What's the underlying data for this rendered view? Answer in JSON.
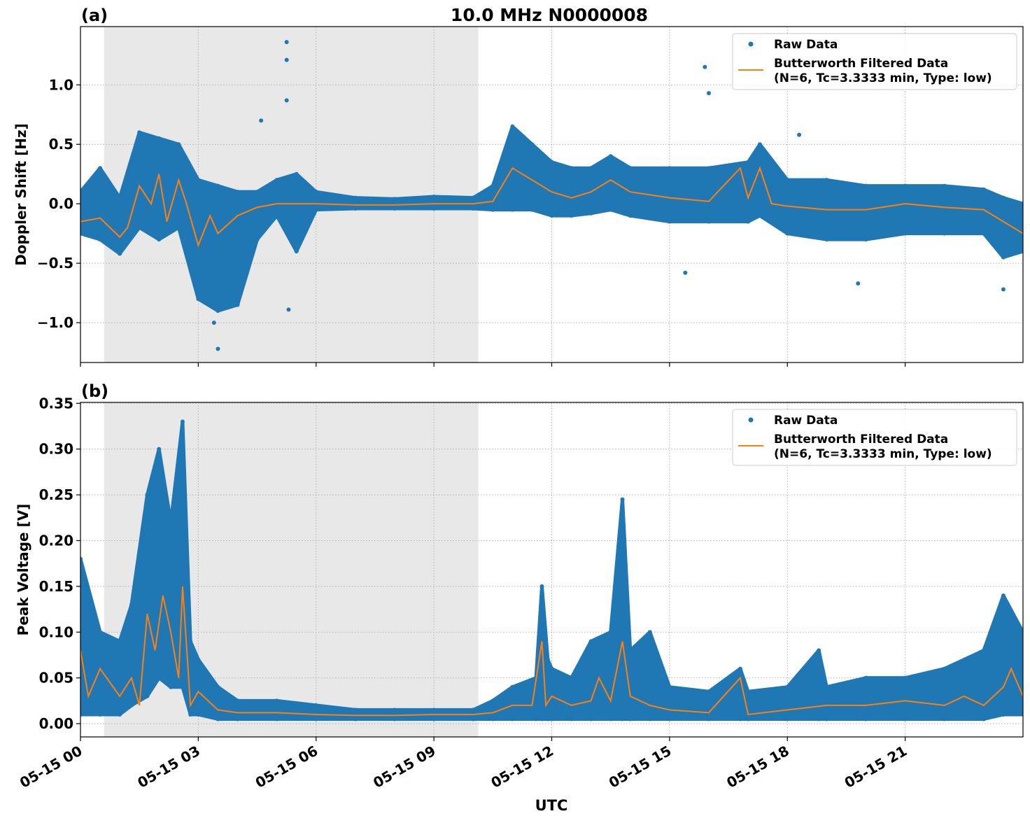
{
  "chart_data": [
    {
      "type": "scatter",
      "panel_label": "(a)",
      "title": "10.0 MHz N0000008",
      "xlabel": "",
      "ylabel": "Doppler Shift [Hz]",
      "xlim_hours": [
        0,
        24
      ],
      "ylim": [
        -1.335,
        1.49
      ],
      "yticks": [
        1.0,
        0.5,
        0.0,
        -0.5,
        -1.0
      ],
      "ytick_labels": [
        "1.0",
        "0.5",
        "0.0",
        "−0.5",
        "−1.0"
      ],
      "grid": true,
      "legend_placement": "top-right",
      "shaded_interval_hours": [
        0.6,
        10.13
      ],
      "shade_color": "#e8e8e8",
      "series": [
        {
          "name": "Raw Data",
          "kind": "scatter-band",
          "color": "#1f77b4",
          "x": [
            0,
            0.5,
            1,
            1.5,
            2,
            2.5,
            3,
            3.5,
            4,
            4.5,
            5,
            5.5,
            6,
            7,
            8,
            9,
            10,
            10.5,
            11,
            11.5,
            12,
            12.5,
            13,
            13.5,
            14,
            15,
            16,
            17,
            17.3,
            18,
            19,
            20,
            21,
            22,
            23,
            23.5,
            24
          ],
          "low": [
            -0.25,
            -0.3,
            -0.42,
            -0.2,
            -0.3,
            -0.2,
            -0.8,
            -0.9,
            -0.85,
            -0.3,
            -0.1,
            -0.4,
            -0.05,
            -0.04,
            -0.04,
            -0.04,
            -0.04,
            -0.05,
            -0.05,
            -0.05,
            -0.1,
            -0.1,
            -0.08,
            -0.05,
            -0.1,
            -0.15,
            -0.15,
            -0.15,
            -0.1,
            -0.25,
            -0.3,
            -0.3,
            -0.25,
            -0.25,
            -0.25,
            -0.45,
            -0.4
          ],
          "high": [
            0.1,
            0.3,
            0.05,
            0.6,
            0.55,
            0.5,
            0.2,
            0.15,
            0.1,
            0.1,
            0.2,
            0.25,
            0.1,
            0.05,
            0.04,
            0.06,
            0.05,
            0.15,
            0.65,
            0.5,
            0.35,
            0.3,
            0.3,
            0.4,
            0.3,
            0.3,
            0.3,
            0.35,
            0.5,
            0.2,
            0.2,
            0.15,
            0.15,
            0.15,
            0.12,
            0.05,
            0.0
          ],
          "outliers": [
            [
              5.25,
              1.36
            ],
            [
              5.25,
              1.21
            ],
            [
              5.25,
              0.87
            ],
            [
              4.6,
              0.7
            ],
            [
              3.5,
              -1.22
            ],
            [
              3.4,
              -1.0
            ],
            [
              5.3,
              -0.89
            ],
            [
              15.9,
              1.15
            ],
            [
              16.0,
              0.93
            ],
            [
              18.3,
              0.58
            ],
            [
              15.4,
              -0.58
            ],
            [
              19.8,
              -0.67
            ],
            [
              23.5,
              -0.72
            ]
          ]
        },
        {
          "name": "Butterworth Filtered Data\n(N=6, Tc=3.3333 min, Type: low)",
          "kind": "line",
          "color": "#ff7f0e",
          "x": [
            0,
            0.5,
            1,
            1.2,
            1.5,
            1.8,
            2,
            2.2,
            2.5,
            2.7,
            3,
            3.3,
            3.5,
            4,
            4.5,
            5,
            5.5,
            6,
            7,
            8,
            9,
            10,
            10.5,
            11,
            11.5,
            12,
            12.5,
            13,
            13.5,
            14,
            15,
            16,
            16.8,
            17,
            17.3,
            17.6,
            18,
            19,
            20,
            21,
            22,
            23,
            23.5,
            24
          ],
          "y": [
            -0.15,
            -0.12,
            -0.28,
            -0.2,
            0.15,
            0.0,
            0.25,
            -0.15,
            0.2,
            0.0,
            -0.35,
            -0.1,
            -0.25,
            -0.1,
            -0.03,
            0.0,
            0.0,
            0.0,
            -0.01,
            -0.01,
            0.0,
            0.0,
            0.02,
            0.3,
            0.2,
            0.1,
            0.05,
            0.1,
            0.2,
            0.1,
            0.05,
            0.02,
            0.3,
            0.05,
            0.3,
            0.0,
            -0.02,
            -0.05,
            -0.05,
            0.0,
            -0.03,
            -0.05,
            -0.15,
            -0.25
          ]
        }
      ],
      "legend": [
        "Raw Data",
        "Butterworth Filtered Data",
        "(N=6, Tc=3.3333 min, Type: low)"
      ]
    },
    {
      "type": "scatter",
      "panel_label": "(b)",
      "title": "",
      "xlabel": "UTC",
      "ylabel": "Peak Voltage [V]",
      "xlim_hours": [
        0,
        24
      ],
      "ylim": [
        -0.0145,
        0.351
      ],
      "yticks": [
        0.0,
        0.05,
        0.1,
        0.15,
        0.2,
        0.25,
        0.3,
        0.35
      ],
      "ytick_labels": [
        "0.00",
        "0.05",
        "0.10",
        "0.15",
        "0.20",
        "0.25",
        "0.30",
        "0.35"
      ],
      "xticks_hours": [
        0,
        3,
        6,
        9,
        12,
        15,
        18,
        21
      ],
      "xtick_labels": [
        "05-15 00",
        "05-15 03",
        "05-15 06",
        "05-15 09",
        "05-15 12",
        "05-15 15",
        "05-15 18",
        "05-15 21"
      ],
      "grid": true,
      "legend_placement": "top-right",
      "shaded_interval_hours": [
        0.6,
        10.13
      ],
      "shade_color": "#e8e8e8",
      "series": [
        {
          "name": "Raw Data",
          "kind": "scatter-band",
          "color": "#1f77b4",
          "x": [
            0,
            0.5,
            1,
            1.3,
            1.7,
            2,
            2.3,
            2.6,
            2.8,
            3,
            3.5,
            4,
            5,
            6,
            7,
            8,
            9,
            10,
            10.5,
            11,
            11.6,
            11.75,
            11.9,
            12,
            12.5,
            13,
            13.5,
            13.8,
            14,
            14.5,
            15,
            16,
            16.8,
            17,
            18,
            18.8,
            19,
            20,
            21,
            22,
            23,
            23.5,
            24
          ],
          "low": [
            0.01,
            0.01,
            0.01,
            0.02,
            0.03,
            0.05,
            0.04,
            0.04,
            0.01,
            0.01,
            0.005,
            0.005,
            0.005,
            0.005,
            0.005,
            0.005,
            0.005,
            0.005,
            0.005,
            0.005,
            0.005,
            0.005,
            0.005,
            0.005,
            0.005,
            0.005,
            0.005,
            0.005,
            0.005,
            0.005,
            0.005,
            0.005,
            0.005,
            0.005,
            0.005,
            0.005,
            0.005,
            0.005,
            0.005,
            0.005,
            0.005,
            0.01,
            0.01
          ],
          "high": [
            0.18,
            0.1,
            0.09,
            0.13,
            0.25,
            0.3,
            0.22,
            0.33,
            0.09,
            0.07,
            0.04,
            0.025,
            0.025,
            0.02,
            0.015,
            0.015,
            0.015,
            0.015,
            0.025,
            0.04,
            0.05,
            0.15,
            0.07,
            0.06,
            0.05,
            0.09,
            0.1,
            0.245,
            0.08,
            0.1,
            0.04,
            0.035,
            0.06,
            0.035,
            0.04,
            0.08,
            0.04,
            0.05,
            0.05,
            0.06,
            0.08,
            0.14,
            0.1
          ]
        },
        {
          "name": "Butterworth Filtered Data\n(N=6, Tc=3.3333 min, Type: low)",
          "kind": "line",
          "color": "#ff7f0e",
          "x": [
            0,
            0.2,
            0.5,
            1,
            1.3,
            1.5,
            1.7,
            1.9,
            2.1,
            2.3,
            2.5,
            2.6,
            2.8,
            3,
            3.5,
            4,
            5,
            6,
            7,
            8,
            9,
            10,
            10.5,
            11,
            11.5,
            11.75,
            11.85,
            12,
            12.5,
            13,
            13.2,
            13.5,
            13.8,
            14,
            14.5,
            15,
            16,
            16.8,
            17,
            18,
            19,
            20,
            21,
            22,
            22.5,
            23,
            23.5,
            23.7,
            24
          ],
          "y": [
            0.08,
            0.03,
            0.06,
            0.03,
            0.05,
            0.02,
            0.12,
            0.08,
            0.14,
            0.1,
            0.05,
            0.15,
            0.02,
            0.035,
            0.015,
            0.012,
            0.012,
            0.01,
            0.009,
            0.009,
            0.01,
            0.01,
            0.012,
            0.02,
            0.02,
            0.09,
            0.02,
            0.03,
            0.02,
            0.025,
            0.05,
            0.025,
            0.09,
            0.03,
            0.02,
            0.015,
            0.012,
            0.05,
            0.01,
            0.015,
            0.02,
            0.02,
            0.025,
            0.02,
            0.03,
            0.02,
            0.04,
            0.06,
            0.03
          ]
        }
      ],
      "legend": [
        "Raw Data",
        "Butterworth Filtered Data",
        "(N=6, Tc=3.3333 min, Type: low)"
      ]
    }
  ]
}
